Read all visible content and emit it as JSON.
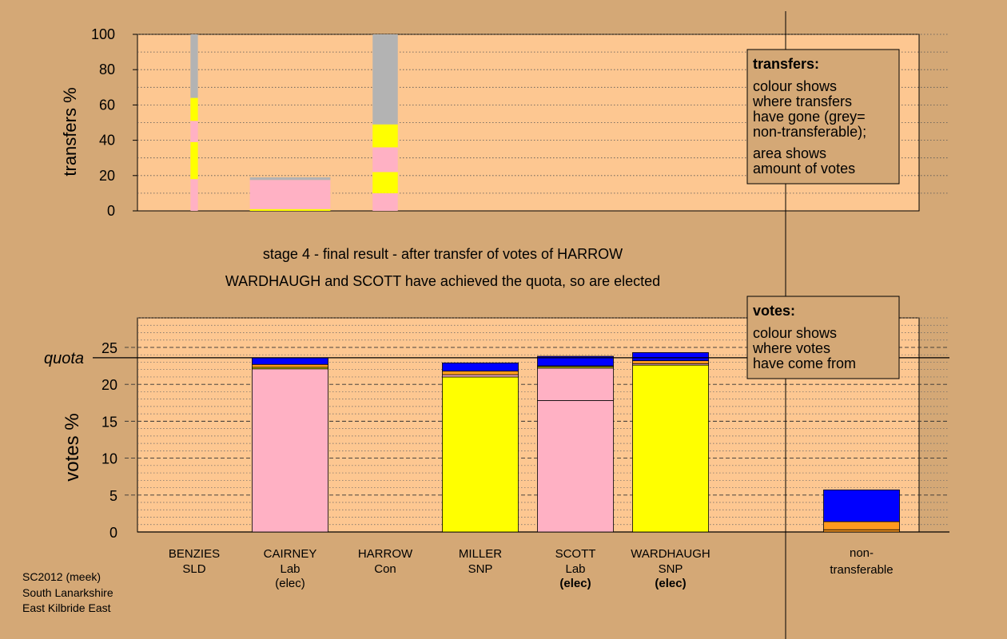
{
  "colors": {
    "background": "#d4a876",
    "panel": "#fdc791",
    "lab_pink": "#ffb1c4",
    "snp_yellow": "#ffff00",
    "con_blue": "#0000ff",
    "sld_orange": "#ff9a1e",
    "nontransferable_grey": "#b3b3b3",
    "legend_box": "#d4a876"
  },
  "title": {
    "stage": "stage 4 - final result - after transfer of votes of HARROW",
    "elected_line": "WARDHAUGH and SCOTT have achieved the quota, so are elected"
  },
  "source": {
    "line1": "SC2012 (meek)",
    "line2": "South Lanarkshire",
    "line3": "East Kilbride East"
  },
  "legend_transfers": {
    "title": "transfers:",
    "line1": "colour shows",
    "line2": "where transfers",
    "line3": "have gone (grey=",
    "line4": "non-transferable);",
    "line5": "area shows",
    "line6": "amount of votes"
  },
  "legend_votes": {
    "title": "votes:",
    "line1": "colour shows",
    "line2": "where votes",
    "line3": "have come from"
  },
  "candidates": [
    {
      "name": "BENZIES",
      "party": "SLD",
      "status": ""
    },
    {
      "name": "CAIRNEY",
      "party": "Lab",
      "status": "(elec)"
    },
    {
      "name": "HARROW",
      "party": "Con",
      "status": ""
    },
    {
      "name": "MILLER",
      "party": "SNP",
      "status": ""
    },
    {
      "name": "SCOTT",
      "party": "Lab",
      "status": "(elec)"
    },
    {
      "name": "WARDHAUGH",
      "party": "SNP",
      "status": "(elec)"
    }
  ],
  "nontransferable_label": {
    "line1": "non-",
    "line2": "transferable"
  },
  "chart_data": [
    {
      "type": "bar",
      "ylabel": "transfers %",
      "ylim": [
        0,
        100
      ],
      "yticks": [
        0,
        20,
        40,
        60,
        80,
        100
      ],
      "columns": [
        {
          "candidate": "BENZIES",
          "width_fraction": 0.22,
          "segments": [
            {
              "color": "lab_pink",
              "from": 0,
              "to": 18
            },
            {
              "color": "snp_yellow",
              "from": 18,
              "to": 39
            },
            {
              "color": "lab_pink",
              "from": 39,
              "to": 51
            },
            {
              "color": "snp_yellow",
              "from": 51,
              "to": 64
            },
            {
              "color": "nontransferable_grey",
              "from": 64,
              "to": 100
            }
          ]
        },
        {
          "candidate": "CAIRNEY",
          "width_fraction": 2.4,
          "segments": [
            {
              "color": "snp_yellow",
              "from": 0,
              "to": 1
            },
            {
              "color": "lab_pink",
              "from": 1,
              "to": 17.5
            },
            {
              "color": "nontransferable_grey",
              "from": 17.5,
              "to": 19
            }
          ]
        },
        {
          "candidate": "HARROW",
          "width_fraction": 0.75,
          "segments": [
            {
              "color": "lab_pink",
              "from": 0,
              "to": 10
            },
            {
              "color": "snp_yellow",
              "from": 10,
              "to": 22
            },
            {
              "color": "lab_pink",
              "from": 22,
              "to": 36
            },
            {
              "color": "snp_yellow",
              "from": 36,
              "to": 49
            },
            {
              "color": "nontransferable_grey",
              "from": 49,
              "to": 100
            }
          ]
        }
      ]
    },
    {
      "type": "bar",
      "ylabel": "votes %",
      "ylim": [
        0,
        29
      ],
      "yticks": [
        0,
        5,
        10,
        15,
        20,
        25
      ],
      "quota": 23.6,
      "quota_label": "quota",
      "series": [
        {
          "candidate": "BENZIES",
          "segments": []
        },
        {
          "candidate": "CAIRNEY",
          "segments": [
            {
              "color": "lab_pink",
              "from": 0,
              "to": 22.1
            },
            {
              "color": "snp_yellow",
              "from": 22.1,
              "to": 22.3
            },
            {
              "color": "sld_orange",
              "from": 22.3,
              "to": 22.7
            },
            {
              "color": "con_blue",
              "from": 22.7,
              "to": 23.6
            }
          ]
        },
        {
          "candidate": "HARROW",
          "segments": []
        },
        {
          "candidate": "MILLER",
          "segments": [
            {
              "color": "snp_yellow",
              "from": 0,
              "to": 21.0
            },
            {
              "color": "lab_pink",
              "from": 21.0,
              "to": 21.3
            },
            {
              "color": "sld_orange",
              "from": 21.3,
              "to": 21.8
            },
            {
              "color": "con_blue",
              "from": 21.8,
              "to": 22.9
            }
          ]
        },
        {
          "candidate": "SCOTT",
          "segments": [
            {
              "color": "lab_pink",
              "from": 0,
              "to": 17.8
            },
            {
              "color": "lab_pink",
              "from": 17.8,
              "to": 22.2
            },
            {
              "color": "snp_yellow",
              "from": 22.2,
              "to": 22.4
            },
            {
              "color": "sld_orange",
              "from": 22.4,
              "to": 22.5
            },
            {
              "color": "con_blue",
              "from": 22.5,
              "to": 23.8
            }
          ]
        },
        {
          "candidate": "WARDHAUGH",
          "segments": [
            {
              "color": "snp_yellow",
              "from": 0,
              "to": 22.6
            },
            {
              "color": "lab_pink",
              "from": 22.6,
              "to": 22.8
            },
            {
              "color": "sld_orange",
              "from": 22.8,
              "to": 23.2
            },
            {
              "color": "con_blue",
              "from": 23.2,
              "to": 24.3
            }
          ]
        },
        {
          "candidate": "non-transferable",
          "segments": [
            {
              "color": "sld_orange",
              "from": 0,
              "to": 0.3
            },
            {
              "color": "sld_orange",
              "from": 0.3,
              "to": 1.4
            },
            {
              "color": "con_blue",
              "from": 1.4,
              "to": 5.7
            }
          ]
        }
      ]
    }
  ]
}
